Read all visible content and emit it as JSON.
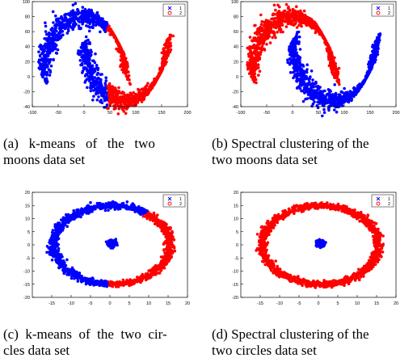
{
  "chart_data": [
    {
      "type": "scatter",
      "xlim": [
        -100,
        200
      ],
      "ylim": [
        -40,
        100
      ],
      "xticks": [
        "-100",
        "-50",
        "0",
        "50",
        "100",
        "150",
        "200"
      ],
      "yticks": [
        "-40",
        "-20",
        "0",
        "20",
        "40",
        "60",
        "80",
        "100"
      ],
      "legend": {
        "placement": "top-right",
        "entries": [
          {
            "label": "1",
            "marker": "x",
            "color": "#0000ff"
          },
          {
            "label": "2",
            "marker": "o",
            "color": "#ff0000"
          }
        ]
      },
      "series": [
        {
          "label": "1",
          "color": "#0000ff"
        },
        {
          "label": "2",
          "color": "#ff0000"
        }
      ],
      "shape": "moons",
      "assign": "kmeans"
    },
    {
      "type": "scatter",
      "xlim": [
        -100,
        200
      ],
      "ylim": [
        -40,
        100
      ],
      "xticks": [
        "-100",
        "-50",
        "0",
        "50",
        "100",
        "150",
        "200"
      ],
      "yticks": [
        "-40",
        "-20",
        "0",
        "20",
        "40",
        "60",
        "80",
        "100"
      ],
      "legend": {
        "placement": "top-right",
        "entries": [
          {
            "label": "1",
            "marker": "x",
            "color": "#0000ff"
          },
          {
            "label": "2",
            "marker": "o",
            "color": "#ff0000"
          }
        ]
      },
      "series": [
        {
          "label": "1",
          "color": "#0000ff"
        },
        {
          "label": "2",
          "color": "#ff0000"
        }
      ],
      "shape": "moons",
      "assign": "spectral"
    },
    {
      "type": "scatter",
      "xlim": [
        -20,
        20
      ],
      "ylim": [
        -20,
        20
      ],
      "xticks": [
        "-15",
        "-10",
        "-5",
        "0",
        "5",
        "10",
        "15",
        "20"
      ],
      "yticks": [
        "-20",
        "-15",
        "-10",
        "-5",
        "0",
        "5",
        "10",
        "15",
        "20"
      ],
      "legend": {
        "placement": "top-right",
        "entries": [
          {
            "label": "1",
            "marker": "x",
            "color": "#0000ff"
          },
          {
            "label": "2",
            "marker": "o",
            "color": "#ff0000"
          }
        ]
      },
      "series": [
        {
          "label": "1",
          "color": "#0000ff"
        },
        {
          "label": "2",
          "color": "#ff0000"
        }
      ],
      "shape": "circles",
      "assign": "kmeans"
    },
    {
      "type": "scatter",
      "xlim": [
        -20,
        20
      ],
      "ylim": [
        -20,
        20
      ],
      "xticks": [
        "-15",
        "-10",
        "-5",
        "0",
        "5",
        "10",
        "15",
        "20"
      ],
      "yticks": [
        "-20",
        "-15",
        "-10",
        "-5",
        "0",
        "5",
        "10",
        "15",
        "20"
      ],
      "legend": {
        "placement": "top-right",
        "entries": [
          {
            "label": "1",
            "marker": "x",
            "color": "#0000ff"
          },
          {
            "label": "2",
            "marker": "o",
            "color": "#ff0000"
          }
        ]
      },
      "series": [
        {
          "label": "1",
          "color": "#0000ff"
        },
        {
          "label": "2",
          "color": "#ff0000"
        }
      ],
      "shape": "circles",
      "assign": "spectral"
    }
  ],
  "captions": {
    "a": {
      "line1": "(a)   k-means   of   the   two",
      "line2": "moons data set"
    },
    "b": {
      "line1": "(b) Spectral clustering of the",
      "line2": "two moons data set"
    },
    "c": {
      "line1": "(c)  k-means  of  the  two  cir-",
      "line2": "cles data set"
    },
    "d": {
      "line1": "(d) Spectral clustering of the",
      "line2": "two circles data set"
    }
  }
}
